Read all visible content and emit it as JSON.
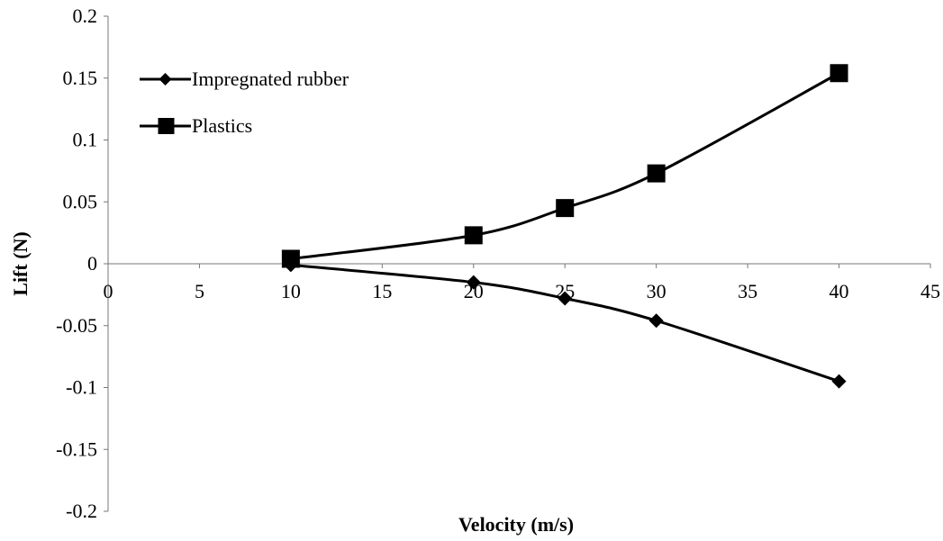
{
  "chart_data": {
    "type": "line",
    "title": "",
    "xlabel": "Velocity (m/s)",
    "ylabel": "Lift (N)",
    "xlim": [
      0,
      45
    ],
    "ylim": [
      -0.2,
      0.2
    ],
    "x_ticks": [
      0,
      5,
      10,
      15,
      20,
      25,
      30,
      35,
      40,
      45
    ],
    "y_ticks": [
      0.2,
      0.15,
      0.1,
      0.05,
      0,
      -0.05,
      -0.1,
      -0.15,
      -0.2
    ],
    "x_tick_labels": [
      "0",
      "5",
      "10",
      "15",
      "20",
      "25",
      "30",
      "35",
      "40",
      "45"
    ],
    "y_tick_labels": [
      "0.2",
      "0.15",
      "0.1",
      "0.05",
      "0",
      "-0.05",
      "-0.1",
      "-0.15",
      "-0.2"
    ],
    "grid": false,
    "legend_position": "top-left",
    "series": [
      {
        "name": "Impregnated rubber",
        "marker": "diamond",
        "color": "#000000",
        "x": [
          10,
          20,
          25,
          30,
          40
        ],
        "y": [
          -0.001,
          -0.015,
          -0.028,
          -0.046,
          -0.095
        ]
      },
      {
        "name": "Plastics",
        "marker": "square",
        "color": "#000000",
        "x": [
          10,
          20,
          25,
          30,
          40
        ],
        "y": [
          0.004,
          0.023,
          0.045,
          0.073,
          0.154
        ]
      }
    ]
  }
}
